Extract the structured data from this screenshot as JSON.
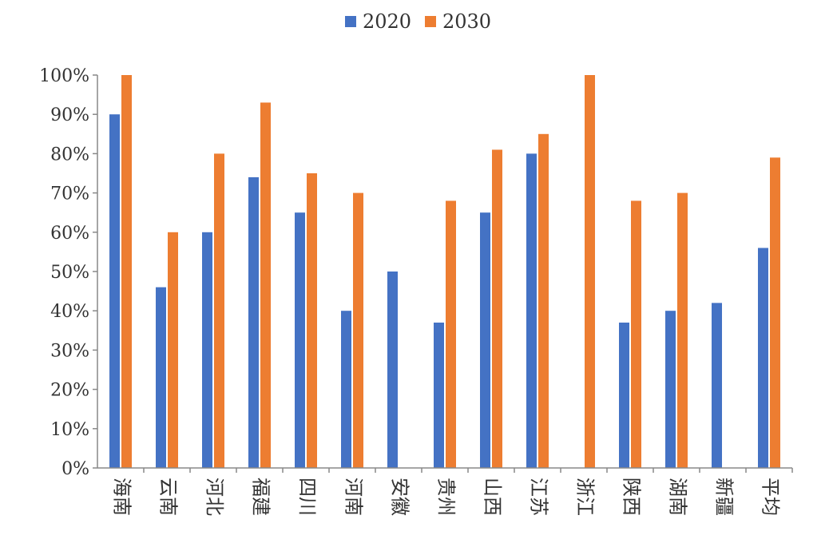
{
  "chart_data": {
    "type": "bar",
    "categories": [
      "海南",
      "云南",
      "河北",
      "福建",
      "四川",
      "河南",
      "安徽",
      "贵州",
      "山西",
      "江苏",
      "浙江",
      "陕西",
      "湖南",
      "新疆",
      "平均"
    ],
    "series": [
      {
        "name": "2020",
        "color": "#4472C4",
        "values": [
          90,
          46,
          60,
          74,
          65,
          40,
          50,
          37,
          65,
          80,
          null,
          37,
          40,
          42,
          56
        ]
      },
      {
        "name": "2030",
        "color": "#ED7D31",
        "values": [
          100,
          60,
          80,
          93,
          75,
          70,
          null,
          68,
          81,
          85,
          100,
          68,
          70,
          null,
          79
        ]
      }
    ],
    "ylim": [
      0,
      100
    ],
    "yticks": [
      "0%",
      "10%",
      "20%",
      "30%",
      "40%",
      "50%",
      "60%",
      "70%",
      "80%",
      "90%",
      "100%"
    ],
    "legend_position": "top-center",
    "grid": false
  }
}
